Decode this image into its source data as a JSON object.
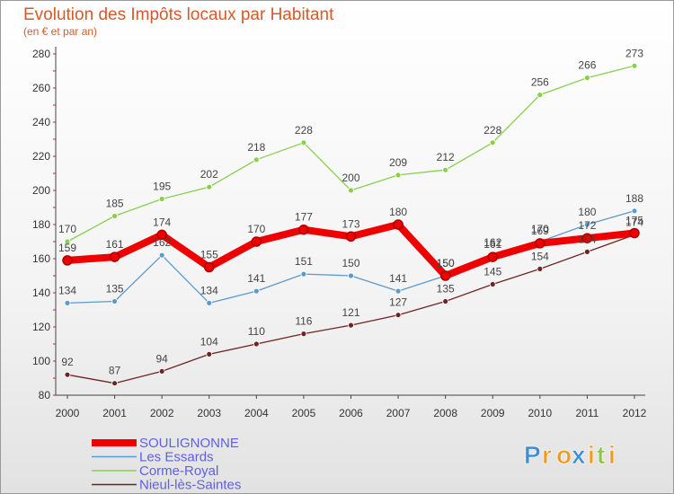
{
  "chart_data": {
    "type": "line",
    "title": "Evolution des Impôts locaux par Habitant",
    "subtitle": "(en € et par an)",
    "xlabel": "",
    "ylabel": "",
    "categories": [
      "2000",
      "2001",
      "2002",
      "2003",
      "2004",
      "2005",
      "2006",
      "2007",
      "2008",
      "2009",
      "2010",
      "2011",
      "2012"
    ],
    "ylim": [
      80,
      280
    ],
    "yticks": [
      80,
      100,
      120,
      140,
      160,
      180,
      200,
      220,
      240,
      260,
      280
    ],
    "grid": false,
    "legend_position": "bottom-left",
    "series": [
      {
        "name": "SOULIGNONNE",
        "color": "#ee0000",
        "values": [
          159,
          161,
          174,
          155,
          170,
          177,
          173,
          180,
          150,
          161,
          169,
          172,
          175
        ]
      },
      {
        "name": "Les Essards",
        "color": "#5c9acc",
        "values": [
          134,
          135,
          162,
          134,
          141,
          151,
          150,
          141,
          150,
          162,
          170,
          180,
          188
        ]
      },
      {
        "name": "Corme-Royal",
        "color": "#88d04c",
        "values": [
          170,
          185,
          195,
          202,
          218,
          228,
          200,
          209,
          212,
          228,
          256,
          266,
          273
        ]
      },
      {
        "name": "Nieul-lès-Saintes",
        "color": "#6e2424",
        "values": [
          92,
          87,
          94,
          104,
          110,
          116,
          121,
          127,
          135,
          145,
          154,
          164,
          174
        ]
      }
    ]
  },
  "logo": {
    "letters": [
      "P",
      "r",
      "o",
      "x",
      "i",
      "t",
      "i"
    ],
    "colors": [
      "#3a8fd8",
      "#f39a1a",
      "#f39a1a",
      "#3a8fd8",
      "#f39a1a",
      "#8cc63f",
      "#f39a1a"
    ]
  }
}
